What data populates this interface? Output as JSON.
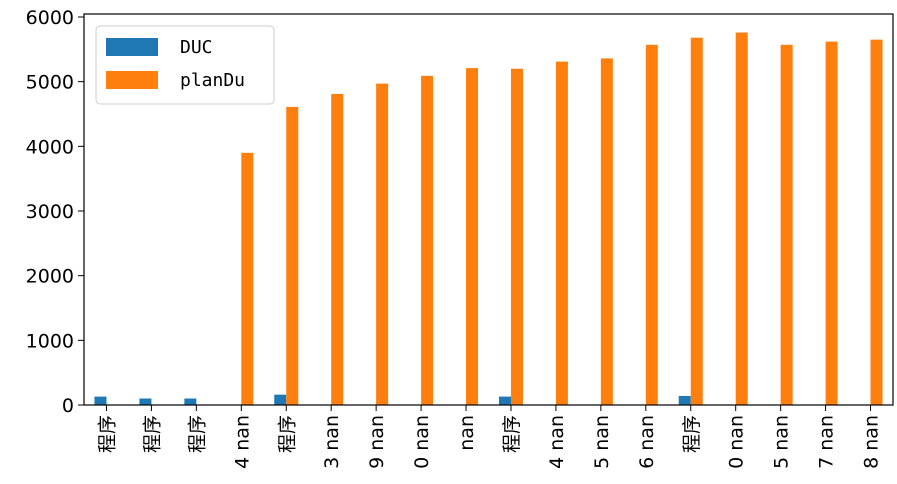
{
  "chart_data": {
    "type": "bar",
    "categories": [
      "程序",
      "程序",
      "程序",
      "4 nan",
      "程序",
      "3 nan",
      "9 nan",
      "0 nan",
      "nan",
      "程序",
      "4 nan",
      "5 nan",
      "6 nan",
      "程序",
      "0 nan",
      "5 nan",
      "7 nan",
      "8 nan"
    ],
    "series": [
      {
        "name": "DUC",
        "color": "#1f77b4",
        "values": [
          130,
          100,
          100,
          null,
          160,
          null,
          null,
          null,
          null,
          130,
          null,
          null,
          null,
          140,
          null,
          null,
          null,
          null
        ]
      },
      {
        "name": "planDu",
        "color": "#ff7f0e",
        "values": [
          null,
          null,
          null,
          3900,
          4610,
          4810,
          4970,
          5090,
          5210,
          5200,
          5310,
          5360,
          5570,
          5680,
          5760,
          5570,
          5620,
          5650
        ]
      }
    ],
    "ylim": [
      0,
      6000
    ],
    "yticks": [
      0,
      1000,
      2000,
      3000,
      4000,
      5000,
      6000
    ],
    "legend": "upper left"
  }
}
